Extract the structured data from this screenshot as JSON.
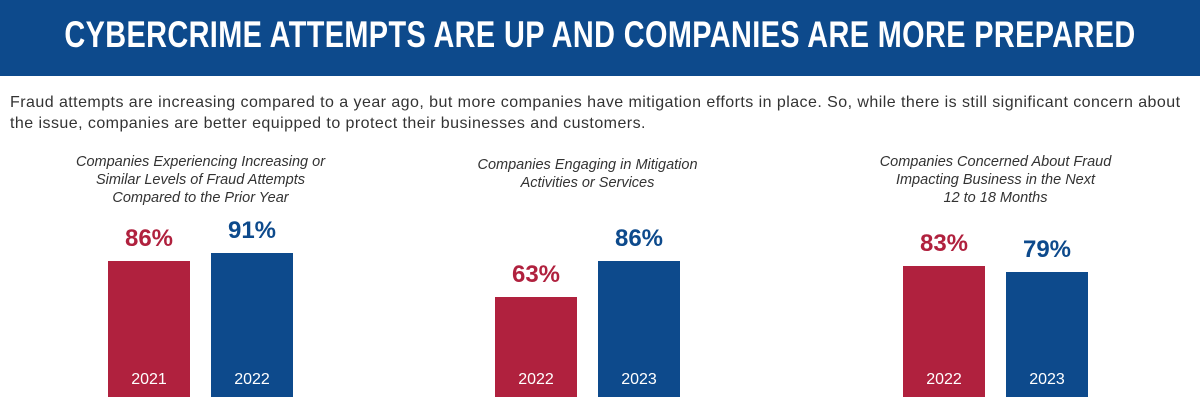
{
  "header": {
    "title": "CYBERCRIME ATTEMPTS ARE UP AND COMPANIES ARE MORE PREPARED",
    "text": "Fraud attempts are increasing compared to a year ago, but more companies have mitigation efforts in place. So, while there is still significant concern about the issue, companies are better equipped to protect their businesses and customers."
  },
  "chart_data": [
    {
      "type": "bar",
      "title": "Companies Experiencing Increasing or\nSimilar Levels of Fraud Attempts\nCompared to the Prior Year",
      "categories": [
        "2021",
        "2022"
      ],
      "values": [
        86,
        91
      ],
      "value_labels": [
        "86%",
        "91%"
      ],
      "colors": [
        "#b0213e",
        "#0d4a8c"
      ]
    },
    {
      "type": "bar",
      "title": "Companies Engaging in Mitigation\nActivities or Services",
      "categories": [
        "2022",
        "2023"
      ],
      "values": [
        63,
        86
      ],
      "value_labels": [
        "63%",
        "86%"
      ],
      "colors": [
        "#b0213e",
        "#0d4a8c"
      ]
    },
    {
      "type": "bar",
      "title": "Companies Concerned About Fraud\nImpacting Business in the Next\n12 to 18 Months",
      "categories": [
        "2022",
        "2023"
      ],
      "values": [
        83,
        79
      ],
      "value_labels": [
        "83%",
        "79%"
      ],
      "colors": [
        "#b0213e",
        "#0d4a8c"
      ]
    }
  ]
}
